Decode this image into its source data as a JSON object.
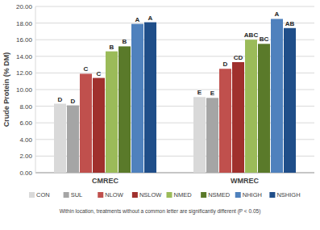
{
  "chart_data": {
    "type": "bar",
    "y_label": "Crude Protein (% DM)",
    "note": "Within location, treatments without a common letter are significantly different (P < 0.05)",
    "categories": [
      "CMREC",
      "WMREC"
    ],
    "series": [
      {
        "name": "CON",
        "color": "#d9d9d9",
        "values": [
          8.3,
          9.1
        ],
        "letters": [
          "D",
          "E"
        ]
      },
      {
        "name": "SUL",
        "color": "#a5a5a5",
        "values": [
          8.1,
          9.0
        ],
        "letters": [
          "D",
          "E"
        ]
      },
      {
        "name": "NLOW",
        "color": "#c0504d",
        "values": [
          11.9,
          12.5
        ],
        "letters": [
          "C",
          "D"
        ]
      },
      {
        "name": "NSLOW",
        "color": "#a0302d",
        "values": [
          11.4,
          13.3
        ],
        "letters": [
          "C",
          "CD"
        ]
      },
      {
        "name": "NMED",
        "color": "#9bbb59",
        "values": [
          14.6,
          16.0
        ],
        "letters": [
          "B",
          "ABC"
        ]
      },
      {
        "name": "NSMED",
        "color": "#5a7a2a",
        "values": [
          15.2,
          15.5
        ],
        "letters": [
          "B",
          "BC"
        ]
      },
      {
        "name": "NHIGH",
        "color": "#4f81bd",
        "values": [
          17.9,
          18.5
        ],
        "letters": [
          "A",
          "A"
        ]
      },
      {
        "name": "NSHIGH",
        "color": "#1f4e89",
        "values": [
          18.1,
          17.4
        ],
        "letters": [
          "A",
          "AB"
        ]
      }
    ],
    "ylim": [
      0,
      20
    ],
    "yticks": [
      {
        "value": 0,
        "label": "0.00"
      },
      {
        "value": 2,
        "label": "2.00"
      },
      {
        "value": 4,
        "label": "4.00"
      },
      {
        "value": 6,
        "label": "6.00"
      },
      {
        "value": 8,
        "label": "8.00"
      },
      {
        "value": 10,
        "label": "10.00"
      },
      {
        "value": 12,
        "label": "12.00"
      },
      {
        "value": 14,
        "label": "14.00"
      },
      {
        "value": 16,
        "label": "16.00"
      },
      {
        "value": 18,
        "label": "18.00"
      },
      {
        "value": 20,
        "label": "20.00"
      }
    ],
    "grid": true,
    "legend": "bottom"
  }
}
